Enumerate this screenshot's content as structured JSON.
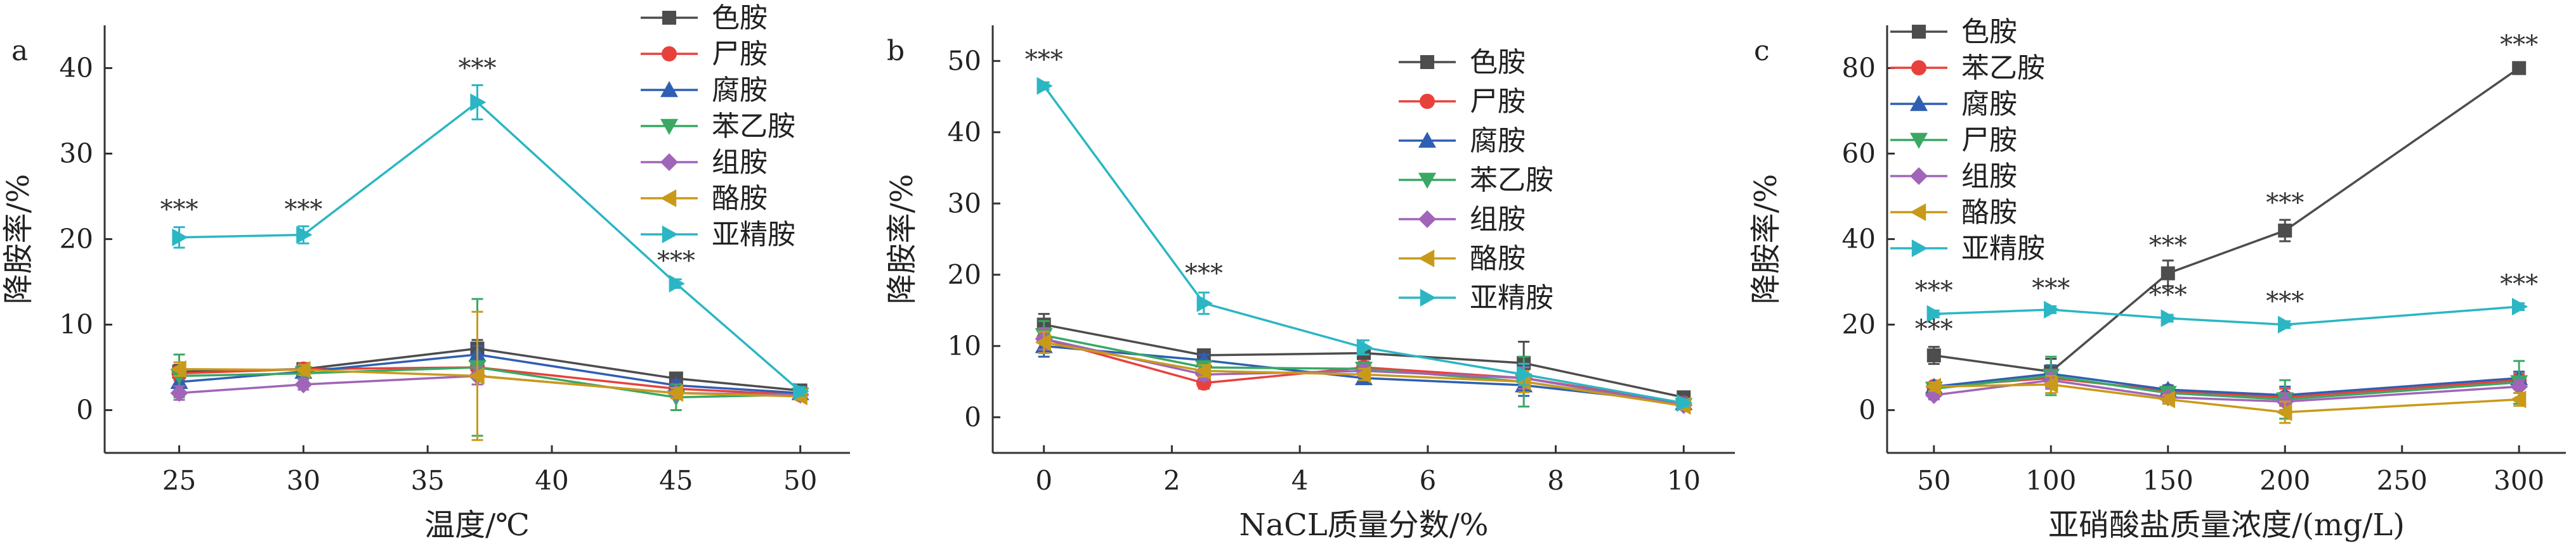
{
  "chart_data": [
    {
      "type": "line",
      "panel_label": "a",
      "xlabel": "温度/℃",
      "ylabel": "降胺率/%",
      "x": [
        25,
        30,
        37,
        45,
        50
      ],
      "xticks": [
        25,
        30,
        35,
        40,
        45,
        50
      ],
      "yticks": [
        0,
        10,
        20,
        30,
        40
      ],
      "xlim": [
        22,
        52
      ],
      "ylim": [
        -5,
        45
      ],
      "legend_position": "top-right",
      "grid": false,
      "series": [
        {
          "name": "色胺",
          "color": "#4d4d4d",
          "marker": "square",
          "values": [
            4.5,
            4.8,
            7.2,
            3.7,
            2.3
          ],
          "errors": [
            0.8,
            0.6,
            1.0,
            0.6,
            0.4
          ]
        },
        {
          "name": "尸胺",
          "color": "#e8413c",
          "marker": "circle",
          "values": [
            4.3,
            4.8,
            5.0,
            2.5,
            1.8
          ],
          "errors": [
            0.8,
            0.6,
            1.0,
            0.6,
            0.4
          ]
        },
        {
          "name": "腐胺",
          "color": "#2f5fb3",
          "marker": "triangle-up",
          "values": [
            3.3,
            4.5,
            6.5,
            2.9,
            2.0
          ],
          "errors": [
            0.7,
            0.6,
            1.0,
            0.6,
            0.4
          ]
        },
        {
          "name": "苯乙胺",
          "color": "#39a863",
          "marker": "triangle-down",
          "values": [
            4.0,
            4.3,
            5.0,
            1.5,
            1.8
          ],
          "errors": [
            2.5,
            0.6,
            8.0,
            1.5,
            0.4
          ]
        },
        {
          "name": "组胺",
          "color": "#a065b8",
          "marker": "diamond",
          "values": [
            2.0,
            3.0,
            4.0,
            2.0,
            1.8
          ],
          "errors": [
            0.8,
            0.6,
            1.0,
            0.6,
            0.4
          ]
        },
        {
          "name": "酪胺",
          "color": "#c99a1a",
          "marker": "triangle-left",
          "values": [
            4.8,
            4.7,
            4.0,
            2.0,
            1.6
          ],
          "errors": [
            0.8,
            0.6,
            7.5,
            0.6,
            0.4
          ]
        },
        {
          "name": "亚精胺",
          "color": "#2bb6c4",
          "marker": "triangle-right",
          "values": [
            20.2,
            20.5,
            36.0,
            14.8,
            2.2
          ],
          "errors": [
            1.2,
            1.0,
            2.0,
            0.5,
            0.5
          ]
        }
      ],
      "annotations": [
        {
          "x": 25,
          "y": 22.5,
          "text": "***"
        },
        {
          "x": 30,
          "y": 22.5,
          "text": "***"
        },
        {
          "x": 37,
          "y": 39.0,
          "text": "***"
        },
        {
          "x": 45,
          "y": 16.5,
          "text": "***"
        }
      ]
    },
    {
      "type": "line",
      "panel_label": "b",
      "xlabel": "NaCL质量分数/%",
      "ylabel": "降胺率/%",
      "x": [
        0,
        2.5,
        5,
        7.5,
        10
      ],
      "xticks": [
        0,
        2,
        4,
        6,
        8,
        10
      ],
      "yticks": [
        0,
        10,
        20,
        30,
        40,
        50
      ],
      "xlim": [
        -0.8,
        10.8
      ],
      "ylim": [
        -5,
        55
      ],
      "legend_position": "top-right",
      "grid": false,
      "series": [
        {
          "name": "色胺",
          "color": "#4d4d4d",
          "marker": "square",
          "values": [
            13.0,
            8.7,
            9.0,
            7.6,
            2.8
          ],
          "errors": [
            1.5,
            0.8,
            0.8,
            3.0,
            0.5
          ]
        },
        {
          "name": "尸胺",
          "color": "#e8413c",
          "marker": "circle",
          "values": [
            11.0,
            4.8,
            7.0,
            5.5,
            2.0
          ],
          "errors": [
            1.5,
            0.8,
            0.8,
            1.5,
            0.5
          ]
        },
        {
          "name": "腐胺",
          "color": "#2f5fb3",
          "marker": "triangle-up",
          "values": [
            10.0,
            8.0,
            5.5,
            4.5,
            2.0
          ],
          "errors": [
            1.5,
            0.8,
            0.8,
            1.5,
            0.5
          ]
        },
        {
          "name": "苯乙胺",
          "color": "#39a863",
          "marker": "triangle-down",
          "values": [
            11.5,
            7.0,
            6.8,
            5.0,
            1.7
          ],
          "errors": [
            2.0,
            0.8,
            0.8,
            3.5,
            0.5
          ]
        },
        {
          "name": "组胺",
          "color": "#a065b8",
          "marker": "diamond",
          "values": [
            11.0,
            6.0,
            6.5,
            5.5,
            1.7
          ],
          "errors": [
            1.5,
            0.8,
            0.8,
            1.5,
            0.5
          ]
        },
        {
          "name": "酪胺",
          "color": "#c99a1a",
          "marker": "triangle-left",
          "values": [
            10.5,
            6.5,
            6.0,
            5.0,
            1.6
          ],
          "errors": [
            1.5,
            0.8,
            0.8,
            1.5,
            0.5
          ]
        },
        {
          "name": "亚精胺",
          "color": "#2bb6c4",
          "marker": "triangle-right",
          "values": [
            46.5,
            16.0,
            9.8,
            6.0,
            2.0
          ],
          "errors": [
            0.5,
            1.5,
            1.0,
            1.5,
            0.5
          ]
        }
      ],
      "annotations": [
        {
          "x": 0,
          "y": 49.0,
          "text": "***"
        },
        {
          "x": 2.5,
          "y": 19.0,
          "text": "***"
        }
      ]
    },
    {
      "type": "line",
      "panel_label": "c",
      "xlabel": "亚硝酸盐质量浓度/(mg/L)",
      "ylabel": "降胺率/%",
      "x": [
        50,
        100,
        150,
        200,
        300
      ],
      "xticks": [
        50,
        100,
        150,
        200,
        250,
        300
      ],
      "yticks": [
        0,
        20,
        40,
        60,
        80
      ],
      "xlim": [
        30,
        320
      ],
      "ylim": [
        -10,
        90
      ],
      "legend_position": "top-left",
      "grid": false,
      "series": [
        {
          "name": "色胺",
          "color": "#4d4d4d",
          "marker": "square",
          "values": [
            12.8,
            9.0,
            32.0,
            42.0,
            80.0
          ],
          "errors": [
            2.0,
            3.0,
            3.0,
            2.5,
            0.5
          ]
        },
        {
          "name": "苯乙胺",
          "color": "#e8413c",
          "marker": "circle",
          "values": [
            5.5,
            7.5,
            4.5,
            3.0,
            7.0
          ],
          "errors": [
            1.0,
            2.0,
            1.0,
            2.0,
            1.5
          ]
        },
        {
          "name": "腐胺",
          "color": "#2f5fb3",
          "marker": "triangle-up",
          "values": [
            5.5,
            8.5,
            4.8,
            3.5,
            7.5
          ],
          "errors": [
            1.0,
            2.0,
            1.0,
            2.0,
            1.5
          ]
        },
        {
          "name": "尸胺",
          "color": "#39a863",
          "marker": "triangle-down",
          "values": [
            5.0,
            8.0,
            4.0,
            2.5,
            6.5
          ],
          "errors": [
            1.0,
            4.5,
            1.0,
            4.5,
            5.0
          ]
        },
        {
          "name": "组胺",
          "color": "#a065b8",
          "marker": "diamond",
          "values": [
            3.5,
            7.0,
            3.0,
            2.0,
            5.5
          ],
          "errors": [
            1.0,
            2.0,
            1.0,
            2.0,
            1.5
          ]
        },
        {
          "name": "酪胺",
          "color": "#c99a1a",
          "marker": "triangle-left",
          "values": [
            5.5,
            6.0,
            2.5,
            -0.5,
            2.5
          ],
          "errors": [
            1.0,
            2.0,
            1.0,
            2.5,
            1.5
          ]
        },
        {
          "name": "亚精胺",
          "color": "#2bb6c4",
          "marker": "triangle-right",
          "values": [
            22.5,
            23.5,
            21.5,
            20.0,
            24.2
          ],
          "errors": [
            0.8,
            0.8,
            0.8,
            0.8,
            0.8
          ]
        }
      ],
      "annotations": [
        {
          "x": 50,
          "y": 17.0,
          "text": "***"
        },
        {
          "x": 50,
          "y": 26.0,
          "text": "***"
        },
        {
          "x": 100,
          "y": 26.5,
          "text": "***"
        },
        {
          "x": 150,
          "y": 25.0,
          "text": "***"
        },
        {
          "x": 150,
          "y": 36.5,
          "text": "***"
        },
        {
          "x": 200,
          "y": 23.5,
          "text": "***"
        },
        {
          "x": 200,
          "y": 46.5,
          "text": "***"
        },
        {
          "x": 300,
          "y": 27.5,
          "text": "***"
        },
        {
          "x": 300,
          "y": 83.5,
          "text": "***"
        }
      ]
    }
  ]
}
